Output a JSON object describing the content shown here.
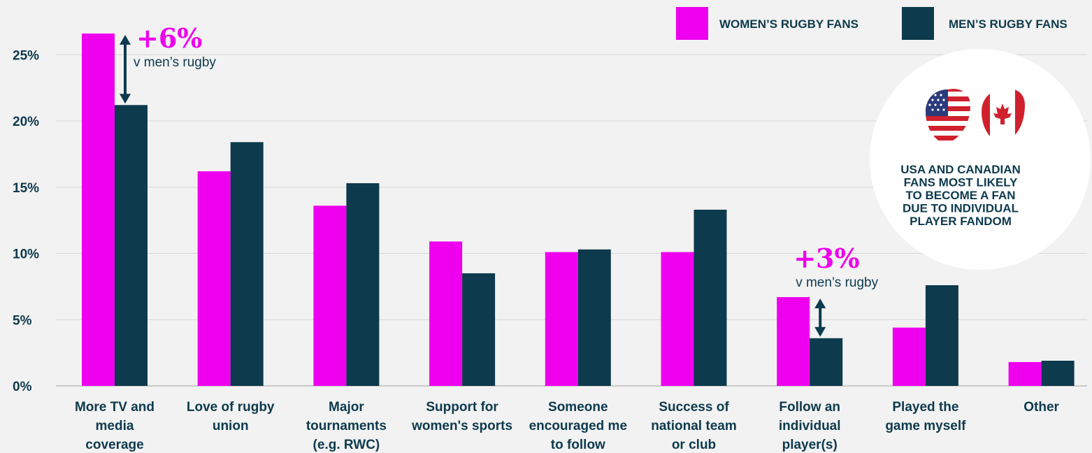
{
  "chart_data": {
    "type": "bar",
    "categories": [
      [
        "More TV and",
        "media",
        "coverage"
      ],
      [
        "Love of rugby",
        "union"
      ],
      [
        "Major",
        "tournaments",
        "(e.g. RWC)"
      ],
      [
        "Support for",
        "women's sports"
      ],
      [
        "Someone",
        "encouraged me",
        "to follow"
      ],
      [
        "Success of",
        "national team",
        "or club"
      ],
      [
        "Follow an",
        "individual",
        "player(s)"
      ],
      [
        "Played the",
        "game myself"
      ],
      [
        "Other"
      ]
    ],
    "series": [
      {
        "name": "WOMEN’S RUGBY FANS",
        "color": "#ee00ee",
        "values": [
          26.6,
          16.2,
          13.6,
          10.9,
          10.1,
          10.1,
          6.7,
          4.4,
          1.8
        ]
      },
      {
        "name": "MEN’S RUGBY FANS",
        "color": "#0d3a4d",
        "values": [
          21.2,
          18.4,
          15.3,
          8.5,
          10.3,
          13.3,
          3.6,
          7.6,
          1.9
        ]
      }
    ],
    "ylim": [
      0,
      27
    ],
    "yticks": [
      0,
      5,
      10,
      15,
      20,
      25
    ],
    "ytick_labels": [
      "0%",
      "5%",
      "10%",
      "15%",
      "20%",
      "25%"
    ],
    "grid": true,
    "legend": "top-right",
    "annotations": [
      {
        "category_index": 0,
        "big": "+6%",
        "small": "v men’s rugby"
      },
      {
        "category_index": 6,
        "big": "+3%",
        "small": "v men’s rugby"
      }
    ]
  },
  "callout": {
    "lines": [
      "USA AND CANADIAN",
      "FANS MOST LIKELY",
      "TO BECOME A FAN",
      "DUE TO INDIVIDUAL",
      "PLAYER FANDOM"
    ],
    "icons": [
      "usa-flag-shield-icon",
      "canada-flag-shield-icon"
    ]
  }
}
